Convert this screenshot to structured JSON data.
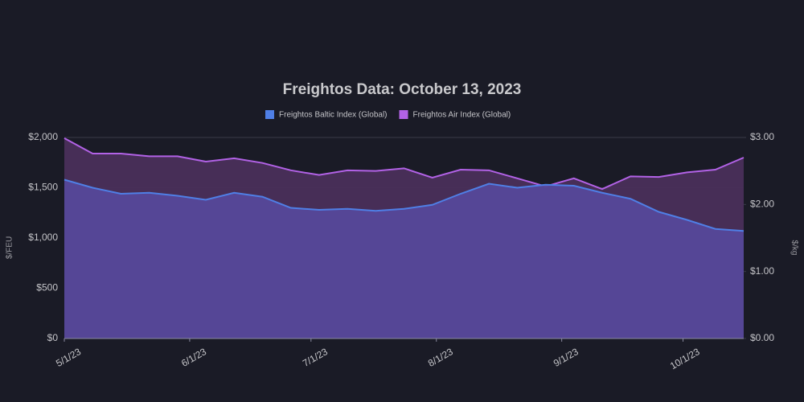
{
  "chart_data": {
    "type": "area",
    "title": "Freightos Data: October 13, 2023",
    "y_label": "$/FEU",
    "y2_label": "$/kg",
    "x": [
      "2023-05-01",
      "2023-05-08",
      "2023-05-15",
      "2023-05-22",
      "2023-05-29",
      "2023-06-05",
      "2023-06-12",
      "2023-06-19",
      "2023-06-26",
      "2023-07-03",
      "2023-07-10",
      "2023-07-17",
      "2023-07-24",
      "2023-07-31",
      "2023-08-07",
      "2023-08-14",
      "2023-08-21",
      "2023-08-28",
      "2023-09-04",
      "2023-09-11",
      "2023-09-18",
      "2023-09-25",
      "2023-10-02",
      "2023-10-09",
      "2023-10-16"
    ],
    "xlim": [
      "2023-05-01",
      "2023-10-16"
    ],
    "xticks": [
      {
        "value": "2023-05-01",
        "label": "5/1/23"
      },
      {
        "value": "2023-06-01",
        "label": "6/1/23"
      },
      {
        "value": "2023-07-01",
        "label": "7/1/23"
      },
      {
        "value": "2023-08-01",
        "label": "8/1/23"
      },
      {
        "value": "2023-09-01",
        "label": "9/1/23"
      },
      {
        "value": "2023-10-01",
        "label": "10/1/23"
      }
    ],
    "ylim": [
      0,
      2000
    ],
    "yticks": [
      {
        "value": 0,
        "label": "$0"
      },
      {
        "value": 500,
        "label": "$500"
      },
      {
        "value": 1000,
        "label": "$1,000"
      },
      {
        "value": 1500,
        "label": "$1,500"
      },
      {
        "value": 2000,
        "label": "$2,000"
      }
    ],
    "y2lim": [
      0,
      3
    ],
    "y2ticks": [
      {
        "value": 0,
        "label": "$0.00"
      },
      {
        "value": 1,
        "label": "$1.00"
      },
      {
        "value": 2,
        "label": "$2.00"
      },
      {
        "value": 3,
        "label": "$3.00"
      }
    ],
    "grid": true,
    "series": [
      {
        "name": "Freightos Baltic Index (Global)",
        "color": "#4f7fe6",
        "fill": "#56489a",
        "axis": "y",
        "values": [
          1580,
          1500,
          1440,
          1450,
          1420,
          1380,
          1450,
          1410,
          1300,
          1280,
          1290,
          1270,
          1290,
          1330,
          1440,
          1540,
          1500,
          1530,
          1520,
          1450,
          1390,
          1260,
          1180,
          1090,
          1070
        ]
      },
      {
        "name": "Freightos Air Index (Global)",
        "color": "#b262e6",
        "fill": "#4a2f5a",
        "axis": "y2",
        "values": [
          2.99,
          2.76,
          2.76,
          2.72,
          2.72,
          2.64,
          2.69,
          2.62,
          2.51,
          2.44,
          2.51,
          2.5,
          2.54,
          2.4,
          2.52,
          2.51,
          2.39,
          2.27,
          2.39,
          2.23,
          2.42,
          2.41,
          2.48,
          2.52,
          2.7
        ]
      }
    ]
  }
}
